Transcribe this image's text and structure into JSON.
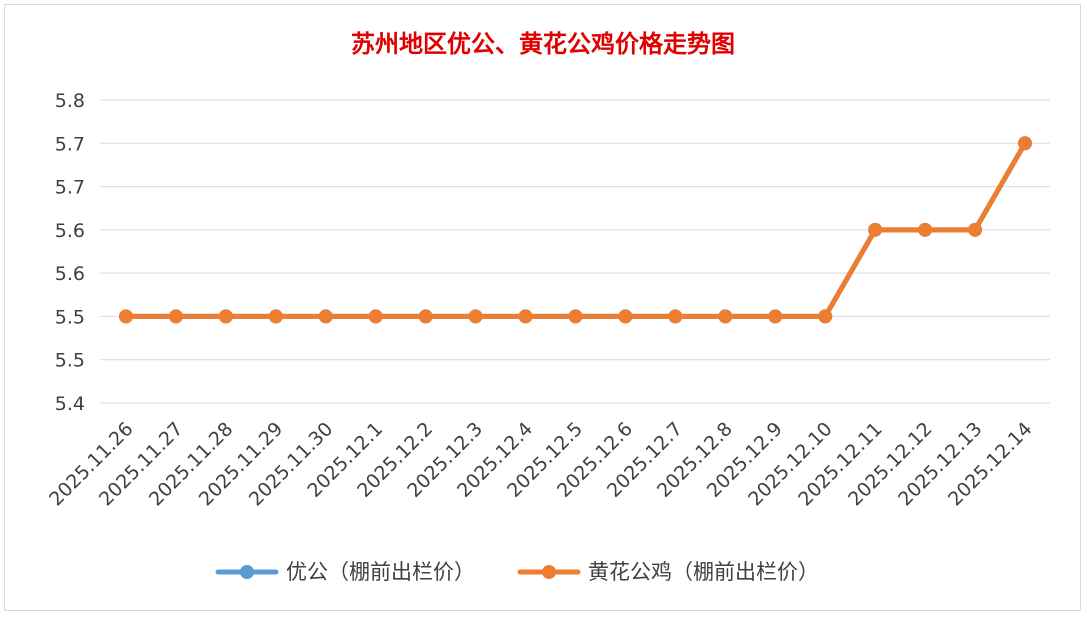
{
  "chart_data": {
    "type": "line",
    "title": "苏州地区优公、黄花公鸡价格走势图",
    "xlabel": "",
    "ylabel": "",
    "categories": [
      "2025.11.26",
      "2025.11.27",
      "2025.11.28",
      "2025.11.29",
      "2025.11.30",
      "2025.12.1",
      "2025.12.2",
      "2025.12.3",
      "2025.12.4",
      "2025.12.5",
      "2025.12.6",
      "2025.12.7",
      "2025.12.8",
      "2025.12.9",
      "2025.12.10",
      "2025.12.11",
      "2025.12.12",
      "2025.12.13",
      "2025.12.14"
    ],
    "y_tick_labels": [
      "5.8",
      "5.7",
      "5.7",
      "5.6",
      "5.6",
      "5.5",
      "5.5",
      "5.4"
    ],
    "ylim": [
      5.4,
      5.75
    ],
    "grid": true,
    "legend_position": "bottom",
    "series": [
      {
        "name": "优公（棚前出栏价）",
        "color": "#5b9bd5",
        "values": [
          5.5,
          5.5,
          5.5,
          5.5,
          5.5,
          5.5,
          5.5,
          5.5,
          5.5,
          5.5,
          5.5,
          5.5,
          5.5,
          5.5,
          5.5,
          5.6,
          5.6,
          5.6,
          5.7
        ]
      },
      {
        "name": "黄花公鸡（棚前出栏价）",
        "color": "#ed7d31",
        "values": [
          5.5,
          5.5,
          5.5,
          5.5,
          5.5,
          5.5,
          5.5,
          5.5,
          5.5,
          5.5,
          5.5,
          5.5,
          5.5,
          5.5,
          5.5,
          5.6,
          5.6,
          5.6,
          5.7
        ]
      }
    ]
  }
}
